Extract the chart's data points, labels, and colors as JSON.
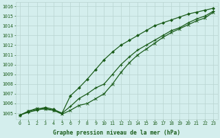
{
  "x": [
    0,
    1,
    2,
    3,
    4,
    5,
    6,
    7,
    8,
    9,
    10,
    11,
    12,
    13,
    14,
    15,
    16,
    17,
    18,
    19,
    20,
    21,
    22,
    23
  ],
  "line1": [
    1004.8,
    1005.2,
    1005.4,
    1005.6,
    1005.4,
    1005.0,
    1006.8,
    1007.6,
    1008.5,
    1009.5,
    1010.5,
    1011.3,
    1012.0,
    1012.5,
    1013.0,
    1013.5,
    1014.0,
    1014.3,
    1014.6,
    1014.9,
    1015.2,
    1015.4,
    1015.6,
    1015.8
  ],
  "line2": [
    1004.8,
    1005.1,
    1005.3,
    1005.5,
    1005.3,
    1005.0,
    1005.7,
    1006.5,
    1007.0,
    1007.6,
    1008.0,
    1009.0,
    1010.0,
    1010.8,
    1011.5,
    1012.0,
    1012.5,
    1013.0,
    1013.5,
    1013.8,
    1014.3,
    1014.7,
    1015.0,
    1015.5
  ],
  "line3": [
    1004.8,
    1005.2,
    1005.5,
    1005.4,
    1005.3,
    1004.9,
    1005.3,
    1005.8,
    1006.0,
    1006.5,
    1007.0,
    1008.0,
    1009.2,
    1010.2,
    1011.0,
    1011.6,
    1012.2,
    1012.8,
    1013.3,
    1013.7,
    1014.1,
    1014.5,
    1014.8,
    1015.4
  ],
  "line_color": "#1a5c1a",
  "bg_color": "#d4eeed",
  "grid_color": "#b8d4d0",
  "text_color": "#1a5c1a",
  "xlabel": "Graphe pression niveau de la mer (hPa)",
  "ylim_min": 1004.4,
  "ylim_max": 1016.4,
  "yticks": [
    1005,
    1006,
    1007,
    1008,
    1009,
    1010,
    1011,
    1012,
    1013,
    1014,
    1015,
    1016
  ],
  "xticks": [
    0,
    1,
    2,
    3,
    4,
    5,
    6,
    7,
    8,
    9,
    10,
    11,
    12,
    13,
    14,
    15,
    16,
    17,
    18,
    19,
    20,
    21,
    22,
    23
  ],
  "tick_fontsize": 4.8,
  "xlabel_fontsize": 5.8
}
